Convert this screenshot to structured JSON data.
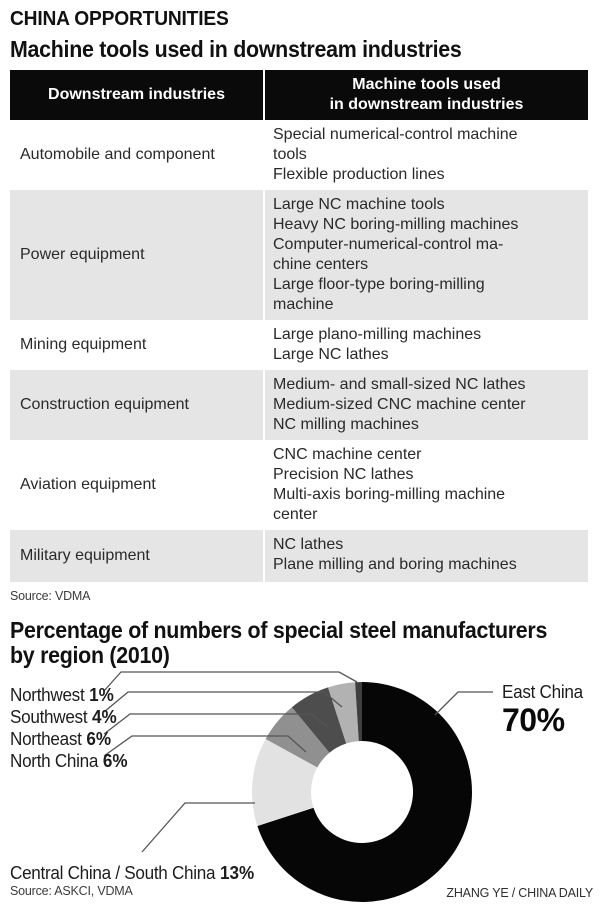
{
  "page": {
    "kicker": "CHINA OPPORTUNITIES",
    "table_source": "Source: VDMA",
    "chart_title": "Percentage of numbers of special steel manufacturers\nby region (2010)",
    "chart_source": "Source: ASKCI, VDMA",
    "credit": "ZHANG YE / CHINA DAILY"
  },
  "chart_data": [
    {
      "type": "table",
      "title": "Machine tools used in downstream industries",
      "columns": [
        "Downstream industries",
        "Machine tools used\nin downstream industries"
      ],
      "rows": [
        {
          "industry": "Automobile and component",
          "tools": "Special numerical-control machine\ntools\nFlexible production lines",
          "shaded": false
        },
        {
          "industry": "Power equipment",
          "tools": "Large NC machine tools\nHeavy NC boring-milling machines\nComputer-numerical-control ma-\nchine centers\nLarge floor-type boring-milling\nmachine",
          "shaded": true
        },
        {
          "industry": "Mining equipment",
          "tools": "Large plano-milling machines\nLarge NC lathes",
          "shaded": false
        },
        {
          "industry": "Construction equipment",
          "tools": "Medium- and small-sized NC lathes\nMedium-sized CNC machine center\nNC milling machines",
          "shaded": true
        },
        {
          "industry": "Aviation equipment",
          "tools": "CNC machine center\nPrecision NC lathes\nMulti-axis boring-milling machine\ncenter",
          "shaded": false
        },
        {
          "industry": "Military equipment",
          "tools": "NC lathes\nPlane milling and boring machines",
          "shaded": true
        }
      ]
    },
    {
      "type": "pie",
      "donut": true,
      "title": "Percentage of numbers of special steel manufacturers by region (2010)",
      "legend_position": "left-and-right callouts",
      "slices": [
        {
          "label": "East China",
          "value": 70,
          "pct": "70%",
          "color": "#060606"
        },
        {
          "label": "Central China / South China",
          "value": 13,
          "pct": "13%",
          "color": "#e2e2e2"
        },
        {
          "label": "North China",
          "value": 6,
          "pct": "6%",
          "color": "#909090"
        },
        {
          "label": "Northeast",
          "value": 6,
          "pct": "6%",
          "color": "#4d4d4d"
        },
        {
          "label": "Southwest",
          "value": 4,
          "pct": "4%",
          "color": "#b2b2b2"
        },
        {
          "label": "Northwest",
          "value": 1,
          "pct": "1%",
          "color": "#3f3f3f"
        }
      ]
    }
  ],
  "colors": {
    "header_bg": "#0a0a0a",
    "header_text": "#ffffff",
    "row_shade": "#e5e5e5",
    "leader_line": "#555555"
  }
}
